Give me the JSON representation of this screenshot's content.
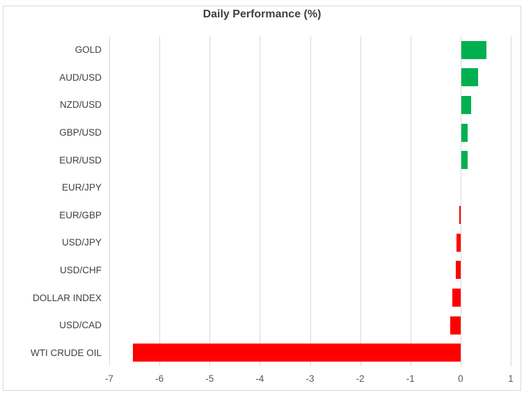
{
  "chart": {
    "title": "Daily Performance (%)"
  },
  "chart_data": {
    "type": "bar",
    "orientation": "horizontal",
    "title": "Daily Performance (%)",
    "xlabel": "",
    "ylabel": "",
    "categories": [
      "GOLD",
      "AUD/USD",
      "NZD/USD",
      "GBP/USD",
      "EUR/USD",
      "EUR/JPY",
      "EUR/GBP",
      "USD/JPY",
      "USD/CHF",
      "DOLLAR INDEX",
      "USD/CAD",
      "WTI CRUDE OIL"
    ],
    "values": [
      0.5,
      0.34,
      0.19,
      0.13,
      0.12,
      0.0,
      -0.03,
      -0.08,
      -0.09,
      -0.16,
      -0.2,
      -6.53
    ],
    "xlim": [
      -7,
      1
    ],
    "x_ticks": [
      "-7",
      "-6",
      "-5",
      "-4",
      "-3",
      "-2",
      "-1",
      "0",
      "1"
    ],
    "grid": true,
    "legend": "none",
    "positive_color": "#00B050",
    "negative_color": "#FF0000",
    "gridline_color": "#d9d9d9"
  }
}
